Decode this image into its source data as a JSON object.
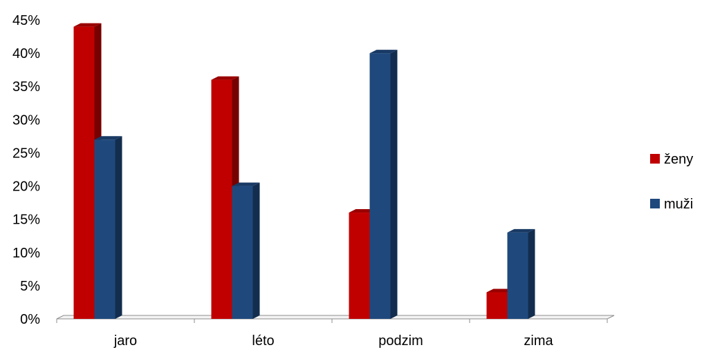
{
  "chart_data": {
    "type": "bar",
    "categories": [
      "jaro",
      "léto",
      "podzim",
      "zima"
    ],
    "series": [
      {
        "name": "ženy",
        "values": [
          44,
          36,
          16,
          4
        ],
        "color": "#C00000"
      },
      {
        "name": "muži",
        "values": [
          27,
          20,
          40,
          13
        ],
        "color": "#1F497D"
      }
    ],
    "ylim": [
      0,
      45
    ],
    "y_ticks": [
      0,
      5,
      10,
      15,
      20,
      25,
      30,
      35,
      40,
      45
    ],
    "y_tick_labels": [
      "0%",
      "5%",
      "10%",
      "15%",
      "20%",
      "25%",
      "30%",
      "35%",
      "40%",
      "45%"
    ],
    "y_unit": "%",
    "grid": false,
    "legend_position": "right",
    "style": "3d-clustered-column"
  }
}
